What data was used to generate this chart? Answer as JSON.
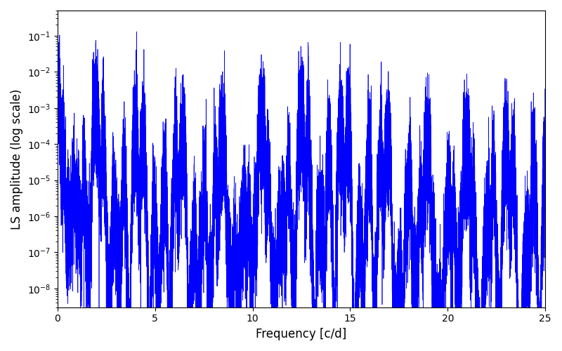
{
  "xlabel": "Frequency [c/d]",
  "ylabel": "LS amplitude (log scale)",
  "xlim": [
    0,
    25
  ],
  "ylim": [
    3e-09,
    0.5
  ],
  "line_color": "#0000ff",
  "line_width": 0.5,
  "figsize": [
    8.0,
    5.0
  ],
  "dpi": 100,
  "yticks": [
    1e-08,
    1e-07,
    1e-06,
    1e-05,
    0.0001,
    0.001,
    0.01,
    0.1
  ],
  "xticks": [
    0,
    5,
    10,
    15,
    20,
    25
  ],
  "n_points": 30000,
  "seed": 42
}
